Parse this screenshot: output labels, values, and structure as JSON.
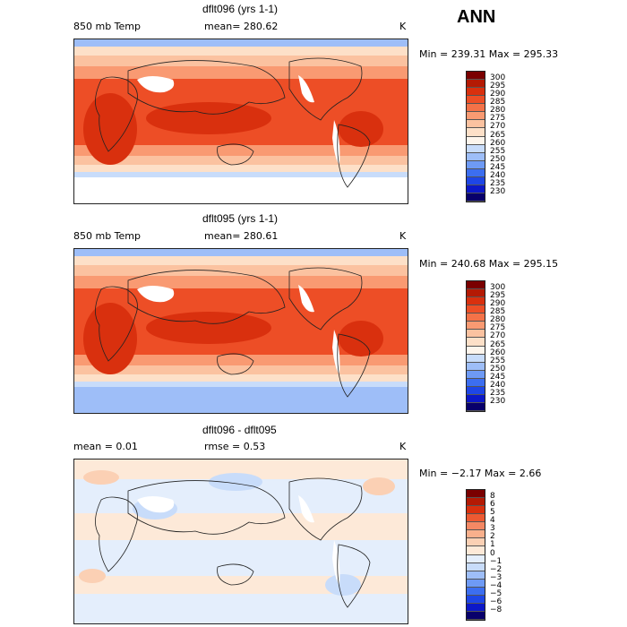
{
  "main_title": "ANN",
  "colors": {
    "temp_scale": [
      "#08006b",
      "#0c18c8",
      "#1e46e6",
      "#3c6ef0",
      "#6e9af5",
      "#9ebef8",
      "#c8dcfa",
      "#fdf5ec",
      "#fde0c8",
      "#fbc2a0",
      "#f99a72",
      "#f47248",
      "#ed4e26",
      "#d9300e",
      "#b41a04",
      "#7a0000"
    ],
    "diff_scale": [
      "#08006b",
      "#0c18c8",
      "#1e46e6",
      "#3c6ef0",
      "#6e9af5",
      "#9ebef8",
      "#c8dcfa",
      "#e4eefc",
      "#fde9d8",
      "#fbd0b4",
      "#f9b08c",
      "#f48864",
      "#ed5a32",
      "#d9300e",
      "#b41a04",
      "#7a0000"
    ]
  },
  "panels": [
    {
      "title": "dflt096 (yrs 1-1)",
      "field": "850 mb Temp",
      "stat_text": "mean=  280.62",
      "unit": "K",
      "range_text": "Min = 239.31  Max = 295.33",
      "colorbar_labels": [
        "300",
        "295",
        "290",
        "285",
        "280",
        "275",
        "270",
        "265",
        "260",
        "255",
        "250",
        "245",
        "240",
        "235",
        "230"
      ]
    },
    {
      "title": "dflt095 (yrs 1-1)",
      "field": "850 mb Temp",
      "stat_text": "mean=  280.61",
      "unit": "K",
      "range_text": "Min = 240.68  Max = 295.15",
      "colorbar_labels": [
        "300",
        "295",
        "290",
        "285",
        "280",
        "275",
        "270",
        "265",
        "260",
        "255",
        "250",
        "245",
        "240",
        "235",
        "230"
      ]
    },
    {
      "title": "dflt096 - dflt095",
      "field": "mean =    0.01",
      "stat_text": "rmse =    0.53",
      "unit": "K",
      "range_text": "Min =  −2.17  Max =   2.66",
      "colorbar_labels": [
        "8",
        "6",
        "5",
        "4",
        "3",
        "2",
        "1",
        "0",
        "−1",
        "−2",
        "−3",
        "−4",
        "−5",
        "−6",
        "−8"
      ]
    }
  ]
}
